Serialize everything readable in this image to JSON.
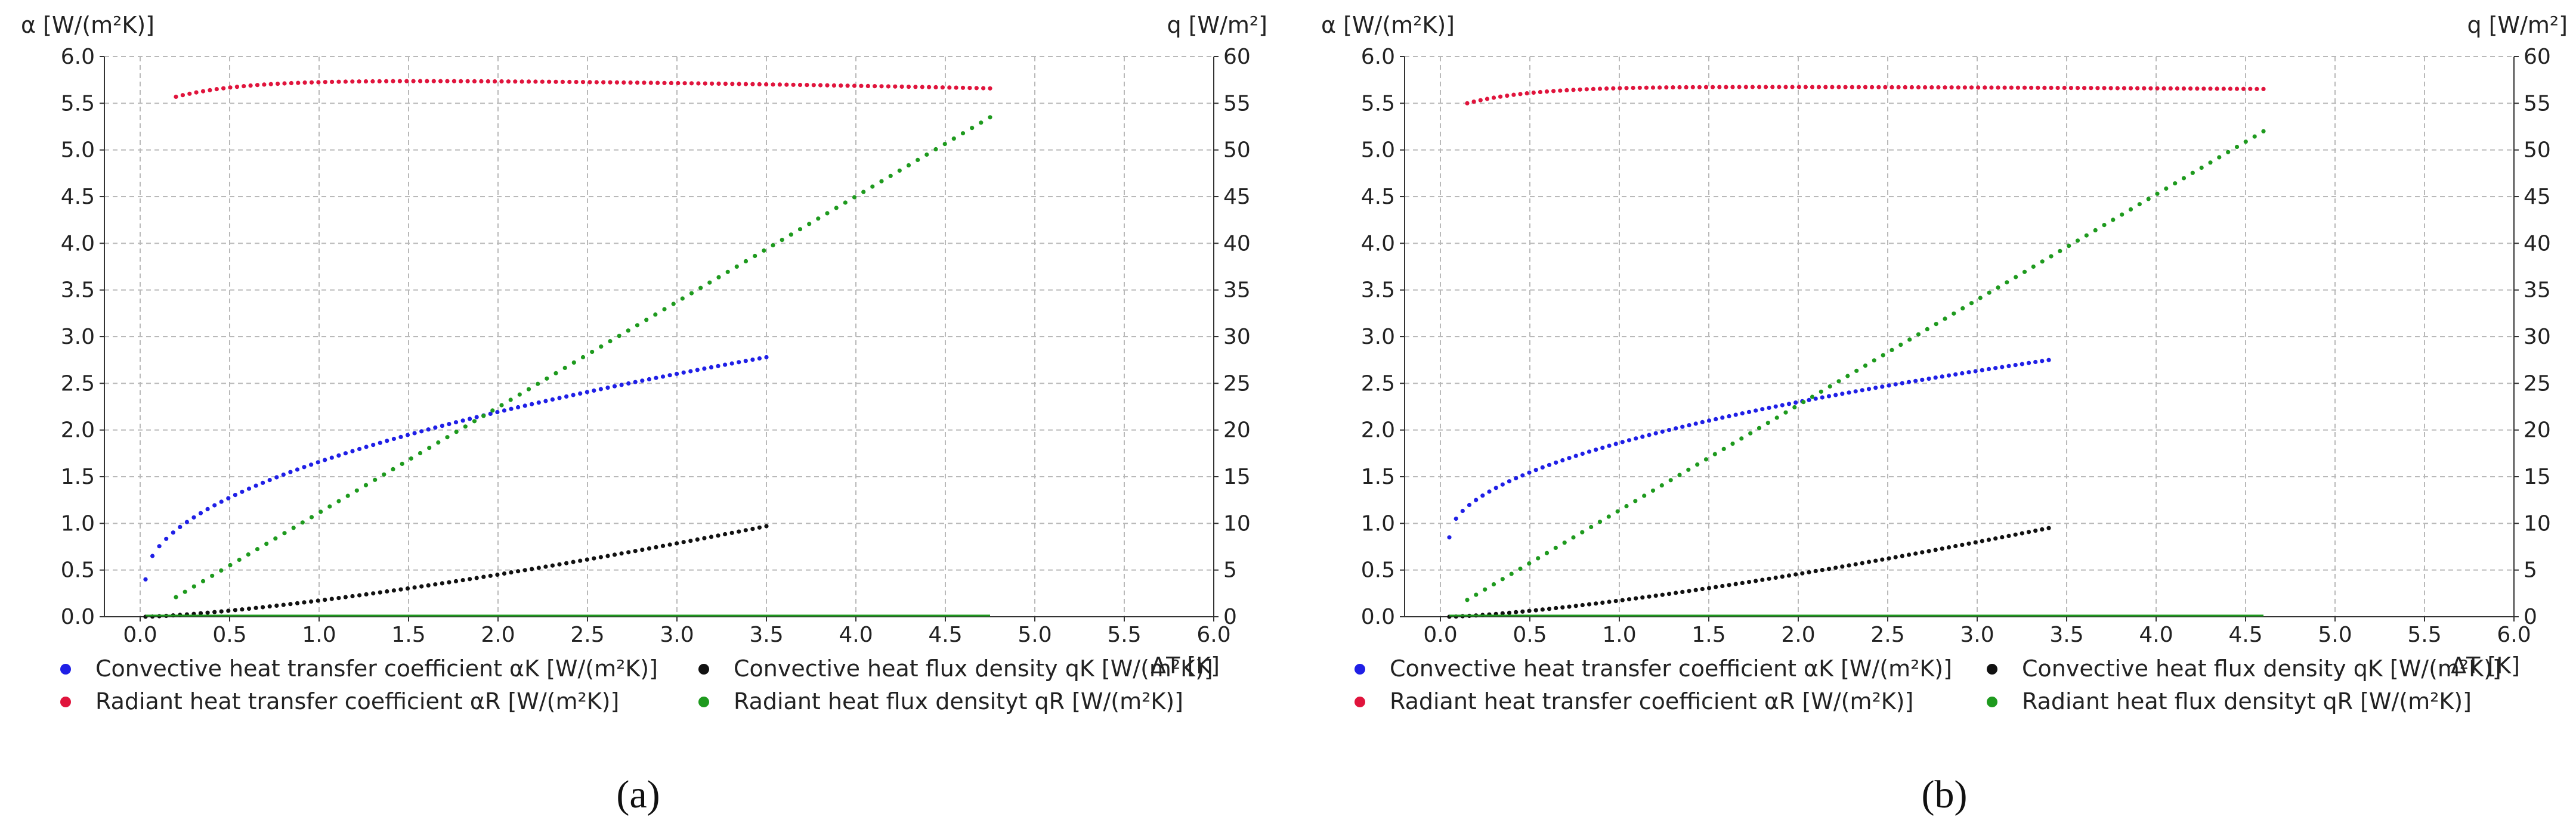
{
  "chart_data": [
    {
      "type": "scatter",
      "panel": "a",
      "caption_letter": "a",
      "y_left_label": "α [W/(m²K)]",
      "y_right_label": "q [W/m²]",
      "x_label": "ΔT [K]",
      "xlim": [
        -0.2,
        6.0
      ],
      "ylim_left": [
        0,
        6.0
      ],
      "ylim_right": [
        0,
        60
      ],
      "x_ticks": [
        "0.0",
        "0.5",
        "1.0",
        "1.5",
        "2.0",
        "2.5",
        "3.0",
        "3.5",
        "4.0",
        "4.5",
        "5.0",
        "5.5",
        "6.0"
      ],
      "y_left_ticks": [
        "0.0",
        "0.5",
        "1.0",
        "1.5",
        "2.0",
        "2.5",
        "3.0",
        "3.5",
        "4.0",
        "4.5",
        "5.0",
        "5.5",
        "6.0"
      ],
      "y_right_ticks": [
        "0",
        "5",
        "10",
        "15",
        "20",
        "25",
        "30",
        "35",
        "40",
        "45",
        "50",
        "55",
        "60"
      ],
      "grid": true,
      "series": [
        {
          "key": "alpha_k",
          "axis": "left",
          "color": "#1f1fe6",
          "x_range": [
            0.03,
            3.5
          ],
          "y_start": 0.4,
          "y_end": 2.78,
          "curve": "sqrt"
        },
        {
          "key": "alpha_r",
          "axis": "left",
          "color": "#e0143c",
          "x_range": [
            0.2,
            4.75
          ],
          "y_start": 5.57,
          "y_end": 5.65,
          "curve": "flat-radiant"
        },
        {
          "key": "q_k",
          "axis": "right",
          "color": "#111111",
          "x_range": [
            0.03,
            3.5
          ],
          "y_start": 0.0,
          "y_end": 9.7,
          "curve": "power"
        },
        {
          "key": "q_r",
          "axis": "right",
          "color": "#1e9a1e",
          "x_range": [
            0.2,
            4.75
          ],
          "y_start": 2.1,
          "y_end": 53.5,
          "curve": "linear"
        }
      ]
    },
    {
      "type": "scatter",
      "panel": "b",
      "caption_letter": "b",
      "y_left_label": "α [W/(m²K)]",
      "y_right_label": "q [W/m²]",
      "x_label": "ΔT [K]",
      "xlim": [
        -0.2,
        6.0
      ],
      "ylim_left": [
        0,
        6.0
      ],
      "ylim_right": [
        0,
        60
      ],
      "x_ticks": [
        "0.0",
        "0.5",
        "1.0",
        "1.5",
        "2.0",
        "2.5",
        "3.0",
        "3.5",
        "4.0",
        "4.5",
        "5.0",
        "5.5",
        "6.0"
      ],
      "y_left_ticks": [
        "0.0",
        "0.5",
        "1.0",
        "1.5",
        "2.0",
        "2.5",
        "3.0",
        "3.5",
        "4.0",
        "4.5",
        "5.0",
        "5.5",
        "6.0"
      ],
      "y_right_ticks": [
        "0",
        "5",
        "10",
        "15",
        "20",
        "25",
        "30",
        "35",
        "40",
        "45",
        "50",
        "55",
        "60"
      ],
      "grid": true,
      "series": [
        {
          "key": "alpha_k",
          "axis": "left",
          "color": "#1f1fe6",
          "x_range": [
            0.05,
            3.4
          ],
          "y_start": 0.85,
          "y_end": 2.75,
          "curve": "sqrt"
        },
        {
          "key": "alpha_r",
          "axis": "left",
          "color": "#e0143c",
          "x_range": [
            0.15,
            4.6
          ],
          "y_start": 5.5,
          "y_end": 5.65,
          "curve": "flat-radiant"
        },
        {
          "key": "q_k",
          "axis": "right",
          "color": "#111111",
          "x_range": [
            0.05,
            3.4
          ],
          "y_start": 0.0,
          "y_end": 9.5,
          "curve": "power"
        },
        {
          "key": "q_r",
          "axis": "right",
          "color": "#1e9a1e",
          "x_range": [
            0.15,
            4.6
          ],
          "y_start": 1.8,
          "y_end": 52.0,
          "curve": "linear"
        }
      ]
    }
  ],
  "legend": {
    "alpha_k": {
      "text": "Convective heat transfer coefficient αK [W/(m²K)]",
      "color": "#1f1fe6"
    },
    "alpha_r": {
      "text": "Radiant heat transfer coefficient αR [W/(m²K)]",
      "color": "#e0143c"
    },
    "q_k": {
      "text": "Convective heat flux density qK [W/(m²K)]",
      "color": "#111111"
    },
    "q_r": {
      "text": "Radiant heat flux densityt qR [W/(m²K)]",
      "color": "#1e9a1e"
    }
  },
  "legend_b": {
    "alpha_k": {
      "text": "Convective heat transfer coefficient αK [W/(m²K)]",
      "color": "#1f1fe6"
    },
    "alpha_r": {
      "text": "Radiant heat transfer coefficient αR [W/(m²K)]",
      "color": "#e0143c"
    },
    "q_k": {
      "text": "Convective heat flux density qK [W/(m²K)]",
      "color": "#111111"
    },
    "q_r": {
      "text": "Radiant heat flux densityt qR [W/(m²K)]",
      "color": "#1e9a1e"
    }
  },
  "captions": {
    "a": "(a)",
    "b": "(b)"
  }
}
